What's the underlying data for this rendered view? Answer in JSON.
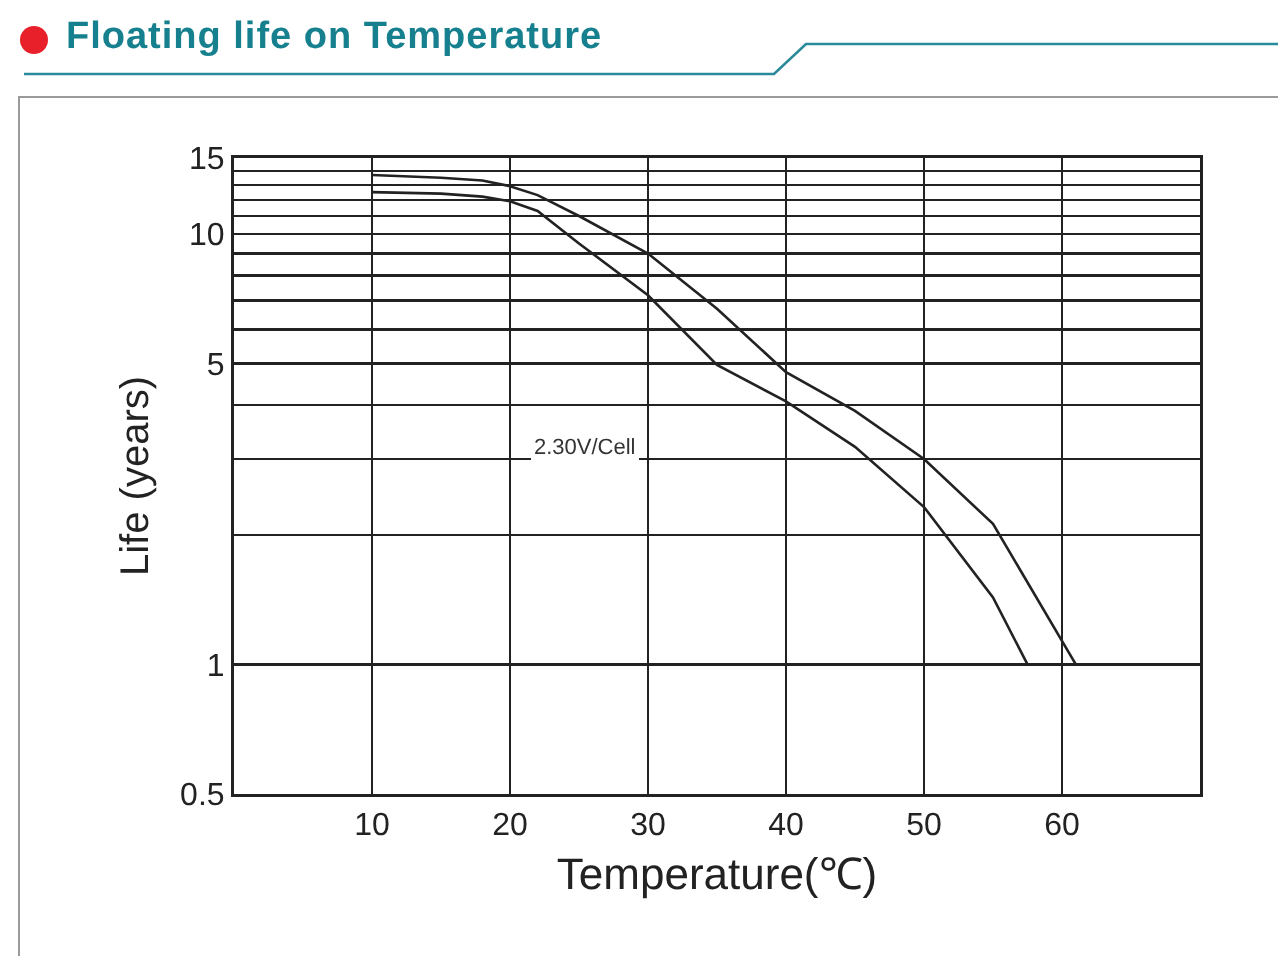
{
  "chart_data": {
    "type": "line",
    "title": "Floating life on Temperature",
    "xlabel": "Temperature(℃)",
    "ylabel": "Life (years)",
    "xlim": [
      0,
      70
    ],
    "xticks": [
      10,
      20,
      30,
      40,
      50,
      60
    ],
    "ylim": [
      0.5,
      15
    ],
    "yticks": [
      0.5,
      1,
      {
        "value": 2,
        "label": null
      },
      {
        "value": 3,
        "label": null
      },
      {
        "value": 4,
        "label": null
      },
      5,
      {
        "value": 6,
        "label": null
      },
      {
        "value": 7,
        "label": null
      },
      {
        "value": 8,
        "label": null
      },
      {
        "value": 9,
        "label": null
      },
      10,
      {
        "value": 11,
        "label": null
      },
      {
        "value": 12,
        "label": null
      },
      {
        "value": 13,
        "label": null
      },
      {
        "value": 14,
        "label": null
      },
      15
    ],
    "log": "y",
    "grid": true,
    "marker": "none",
    "line_style": "solid",
    "series": [
      {
        "color": "#222222",
        "x": [
          10,
          15,
          18,
          20,
          22,
          25,
          30,
          35,
          40,
          45,
          50,
          55,
          61
        ],
        "values": [
          13.7,
          13.5,
          13.3,
          12.9,
          12.3,
          11.0,
          9.0,
          6.7,
          4.77,
          3.88,
          3.0,
          2.12,
          1.0
        ]
      },
      {
        "color": "#222222",
        "x": [
          10,
          15,
          18,
          20,
          22,
          25,
          30,
          35,
          40,
          45,
          50,
          55,
          57.5
        ],
        "values": [
          12.5,
          12.4,
          12.2,
          11.9,
          11.3,
          9.5,
          7.2,
          4.96,
          4.08,
          3.2,
          2.32,
          1.43,
          1.0
        ]
      }
    ],
    "annotations": [
      "2.30V/Cell"
    ]
  }
}
